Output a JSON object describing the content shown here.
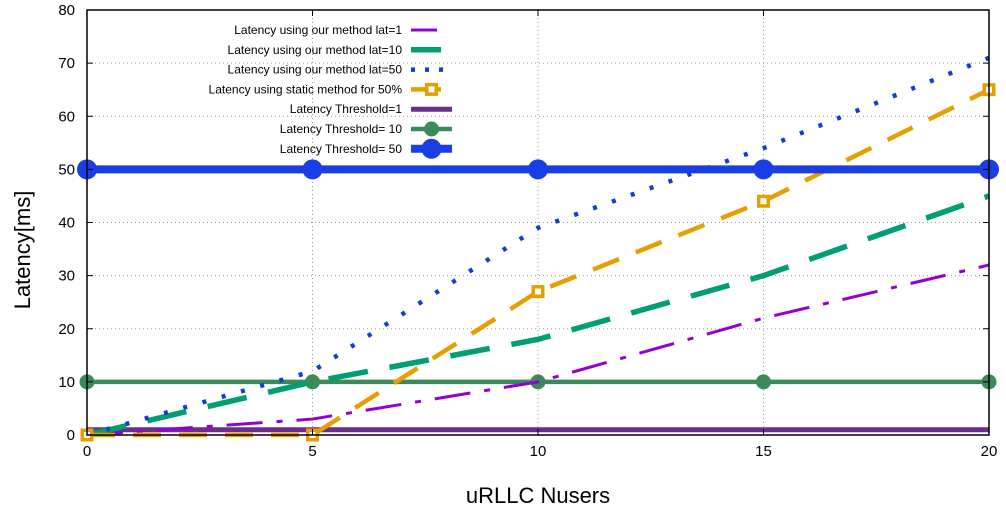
{
  "chart_data": {
    "type": "line",
    "title": "",
    "xlabel": "uRLLC Nusers",
    "ylabel": "Latency[ms]",
    "xlim": [
      0,
      20
    ],
    "ylim": [
      0,
      80
    ],
    "xticks": [
      0,
      5,
      10,
      15,
      20
    ],
    "yticks": [
      0,
      10,
      20,
      30,
      40,
      50,
      60,
      70,
      80
    ],
    "grid": true,
    "legend_position": "top-left",
    "series": [
      {
        "name": "Latency using our method lat=1",
        "color": "#9400d3",
        "x": [
          0,
          5,
          10,
          15,
          20
        ],
        "y": [
          0,
          3,
          10,
          22,
          32
        ]
      },
      {
        "name": "Latency using our method lat=10",
        "color": "#009e73",
        "x": [
          0,
          5,
          10,
          15,
          20
        ],
        "y": [
          0,
          10,
          18,
          30,
          45
        ]
      },
      {
        "name": "Latency using our method lat=50",
        "color": "#0f3fd4",
        "x": [
          0,
          5,
          10,
          15,
          20
        ],
        "y": [
          0,
          12,
          39,
          54,
          71
        ]
      },
      {
        "name": "Latency using static method for 50%",
        "color": "#e69f00",
        "x": [
          0,
          5,
          10,
          15,
          20
        ],
        "y": [
          0,
          0,
          27,
          44,
          65
        ]
      },
      {
        "name": "Latency Threshold=1",
        "color": "#6b2d8e",
        "x": [
          0,
          5,
          10,
          15,
          20
        ],
        "y": [
          1,
          1,
          1,
          1,
          1
        ]
      },
      {
        "name": "Latency Threshold= 10",
        "color": "#3a8a5a",
        "x": [
          0,
          5,
          10,
          15,
          20
        ],
        "y": [
          10,
          10,
          10,
          10,
          10
        ]
      },
      {
        "name": "Latency Threshold= 50",
        "color": "#1a3ee6",
        "x": [
          0,
          5,
          10,
          15,
          20
        ],
        "y": [
          50,
          50,
          50,
          50,
          50
        ]
      }
    ]
  }
}
